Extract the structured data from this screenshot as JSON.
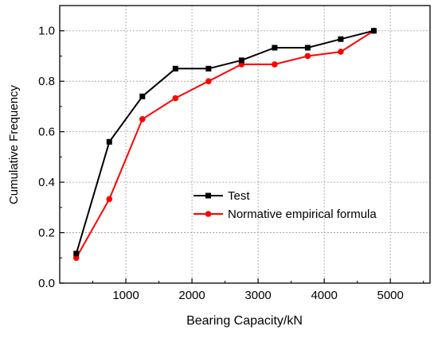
{
  "chart_data": {
    "type": "line",
    "title": "",
    "xlabel": "Bearing Capacity/kN",
    "ylabel": "Cumulative Frequency",
    "xlim": [
      0,
      5600
    ],
    "ylim": [
      0.0,
      1.1
    ],
    "x_ticks": [
      1000,
      2000,
      3000,
      4000,
      5000
    ],
    "x_tick_labels": [
      "1000",
      "2000",
      "3000",
      "4000",
      "5000"
    ],
    "y_ticks": [
      0.0,
      0.2,
      0.4,
      0.6,
      0.8,
      1.0
    ],
    "y_tick_labels": [
      "0.0",
      "0.2",
      "0.4",
      "0.6",
      "0.8",
      "1.0"
    ],
    "grid": true,
    "legend_position": "lower-right",
    "series": [
      {
        "name": "Test",
        "color": "#000000",
        "marker": "square",
        "x": [
          250,
          750,
          1250,
          1750,
          2250,
          2750,
          3250,
          3750,
          4250,
          4750
        ],
        "values": [
          0.117,
          0.56,
          0.74,
          0.85,
          0.85,
          0.883,
          0.933,
          0.933,
          0.967,
          1.0
        ]
      },
      {
        "name": "Normative empirical formula",
        "color": "#ff0000",
        "marker": "circle",
        "x": [
          250,
          750,
          1250,
          1750,
          2250,
          2750,
          3250,
          3750,
          4250,
          4750
        ],
        "values": [
          0.1,
          0.333,
          0.65,
          0.733,
          0.8,
          0.867,
          0.867,
          0.9,
          0.917,
          1.0
        ]
      }
    ]
  }
}
